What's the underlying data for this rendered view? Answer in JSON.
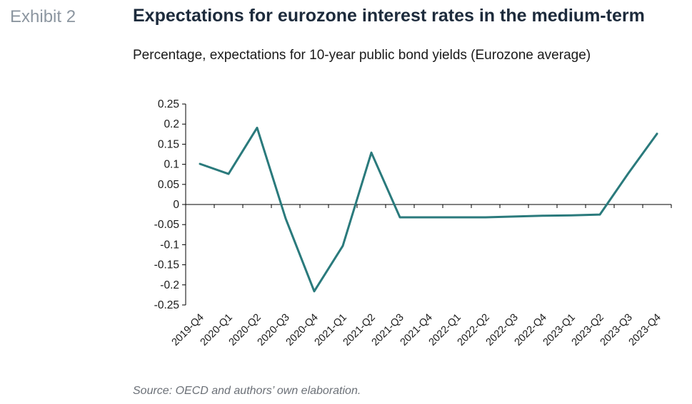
{
  "header": {
    "exhibit_label": "Exhibit 2",
    "title": "Expectations for eurozone interest rates in the medium-term",
    "subtitle": "Percentage, expectations for 10-year public bond yields (Eurozone average)"
  },
  "footer": {
    "source": "Source: OECD and authors’ own elaboration."
  },
  "colors": {
    "line": "#2a7a7c",
    "axis": "#000000",
    "title": "#1d2b3c",
    "exhibit": "#8c96a0"
  },
  "chart_data": {
    "type": "line",
    "title": "",
    "xlabel": "",
    "ylabel": "",
    "ylim": [
      -0.25,
      0.25
    ],
    "ytick_step": 0.05,
    "y_tick_labels": [
      "0.25",
      "0.2",
      "0.15",
      "0.1",
      "0.05",
      "0",
      "-0.05",
      "-0.1",
      "-0.15",
      "-0.2",
      "-0.25"
    ],
    "grid": false,
    "legend": "none",
    "categories": [
      "2019-Q4",
      "2020-Q1",
      "2020-Q2",
      "2020-Q3",
      "2020-Q4",
      "2021-Q1",
      "2021-Q2",
      "2021-Q3",
      "2021-Q4",
      "2022-Q1",
      "2022-Q2",
      "2022-Q3",
      "2022-Q4",
      "2023-Q1",
      "2023-Q2",
      "2023-Q3",
      "2023-Q4"
    ],
    "series": [
      {
        "values": [
          0.101,
          0.076,
          0.191,
          -0.035,
          -0.216,
          -0.103,
          0.129,
          -0.032,
          -0.032,
          -0.032,
          -0.032,
          -0.03,
          -0.028,
          -0.027,
          -0.025,
          0.078,
          0.176
        ]
      }
    ]
  }
}
